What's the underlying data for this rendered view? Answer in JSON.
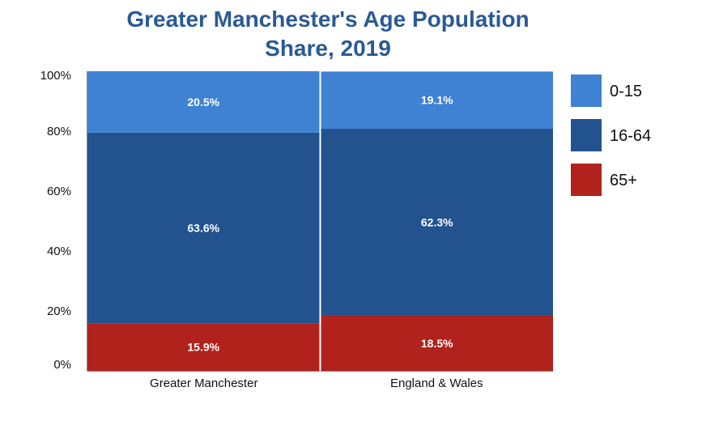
{
  "colors": {
    "title": "#2a5a94",
    "series_0_15": "#3f81d3",
    "series_16_64": "#22538e",
    "series_65_plus": "#b0221b",
    "axis": "#888888",
    "label_text": "#ffffff",
    "tick_text": "#111111"
  },
  "chart_data": {
    "type": "bar",
    "stacked": true,
    "title_lines": [
      "Greater Manchester's Age Population",
      "Share, 2019"
    ],
    "categories": [
      "Greater Manchester",
      "England & Wales"
    ],
    "series": [
      {
        "name": "65+",
        "values": [
          15.9,
          18.5
        ],
        "labels": [
          "15.9%",
          "18.5%"
        ],
        "color_key": "series_65_plus"
      },
      {
        "name": "16-64",
        "values": [
          63.6,
          62.3
        ],
        "labels": [
          "63.6%",
          "62.3%"
        ],
        "color_key": "series_16_64"
      },
      {
        "name": "0-15",
        "values": [
          20.5,
          19.1
        ],
        "labels": [
          "20.5%",
          "19.1%"
        ],
        "color_key": "series_0_15"
      }
    ],
    "ylim": [
      0,
      100
    ],
    "yticks": [
      0,
      20,
      40,
      60,
      80,
      100
    ],
    "ytick_labels": [
      "0%",
      "20%",
      "40%",
      "60%",
      "80%",
      "100%"
    ],
    "legend": {
      "placement": "right",
      "items": [
        {
          "label": "0-15",
          "color_key": "series_0_15"
        },
        {
          "label": "16-64",
          "color_key": "series_16_64"
        },
        {
          "label": "65+",
          "color_key": "series_65_plus"
        }
      ]
    },
    "grid": false,
    "xlabel": "",
    "ylabel": ""
  }
}
